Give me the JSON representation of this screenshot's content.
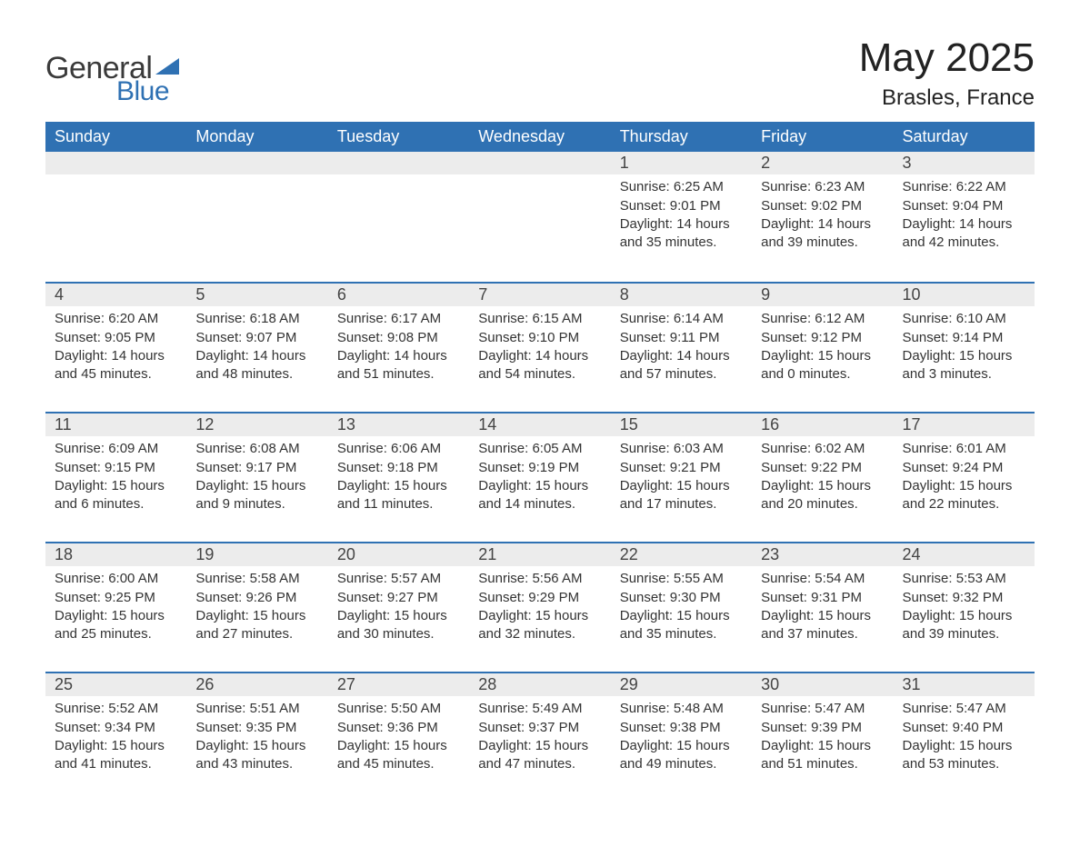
{
  "logo": {
    "word1": "General",
    "word2": "Blue",
    "text_color": "#3a3a3a",
    "accent_color": "#2f71b3"
  },
  "title": "May 2025",
  "location": "Brasles, France",
  "colors": {
    "header_bg": "#2f71b3",
    "header_text": "#ffffff",
    "daynum_bg": "#ececec",
    "row_border": "#2f71b3",
    "body_text": "#333333",
    "page_bg": "#ffffff"
  },
  "typography": {
    "title_fontsize": 44,
    "location_fontsize": 24,
    "header_fontsize": 18,
    "daynum_fontsize": 18,
    "body_fontsize": 15
  },
  "calendar": {
    "type": "table",
    "columns": [
      "Sunday",
      "Monday",
      "Tuesday",
      "Wednesday",
      "Thursday",
      "Friday",
      "Saturday"
    ],
    "weeks": [
      [
        null,
        null,
        null,
        null,
        {
          "num": "1",
          "sunrise": "6:25 AM",
          "sunset": "9:01 PM",
          "daylight": "14 hours and 35 minutes."
        },
        {
          "num": "2",
          "sunrise": "6:23 AM",
          "sunset": "9:02 PM",
          "daylight": "14 hours and 39 minutes."
        },
        {
          "num": "3",
          "sunrise": "6:22 AM",
          "sunset": "9:04 PM",
          "daylight": "14 hours and 42 minutes."
        }
      ],
      [
        {
          "num": "4",
          "sunrise": "6:20 AM",
          "sunset": "9:05 PM",
          "daylight": "14 hours and 45 minutes."
        },
        {
          "num": "5",
          "sunrise": "6:18 AM",
          "sunset": "9:07 PM",
          "daylight": "14 hours and 48 minutes."
        },
        {
          "num": "6",
          "sunrise": "6:17 AM",
          "sunset": "9:08 PM",
          "daylight": "14 hours and 51 minutes."
        },
        {
          "num": "7",
          "sunrise": "6:15 AM",
          "sunset": "9:10 PM",
          "daylight": "14 hours and 54 minutes."
        },
        {
          "num": "8",
          "sunrise": "6:14 AM",
          "sunset": "9:11 PM",
          "daylight": "14 hours and 57 minutes."
        },
        {
          "num": "9",
          "sunrise": "6:12 AM",
          "sunset": "9:12 PM",
          "daylight": "15 hours and 0 minutes."
        },
        {
          "num": "10",
          "sunrise": "6:10 AM",
          "sunset": "9:14 PM",
          "daylight": "15 hours and 3 minutes."
        }
      ],
      [
        {
          "num": "11",
          "sunrise": "6:09 AM",
          "sunset": "9:15 PM",
          "daylight": "15 hours and 6 minutes."
        },
        {
          "num": "12",
          "sunrise": "6:08 AM",
          "sunset": "9:17 PM",
          "daylight": "15 hours and 9 minutes."
        },
        {
          "num": "13",
          "sunrise": "6:06 AM",
          "sunset": "9:18 PM",
          "daylight": "15 hours and 11 minutes."
        },
        {
          "num": "14",
          "sunrise": "6:05 AM",
          "sunset": "9:19 PM",
          "daylight": "15 hours and 14 minutes."
        },
        {
          "num": "15",
          "sunrise": "6:03 AM",
          "sunset": "9:21 PM",
          "daylight": "15 hours and 17 minutes."
        },
        {
          "num": "16",
          "sunrise": "6:02 AM",
          "sunset": "9:22 PM",
          "daylight": "15 hours and 20 minutes."
        },
        {
          "num": "17",
          "sunrise": "6:01 AM",
          "sunset": "9:24 PM",
          "daylight": "15 hours and 22 minutes."
        }
      ],
      [
        {
          "num": "18",
          "sunrise": "6:00 AM",
          "sunset": "9:25 PM",
          "daylight": "15 hours and 25 minutes."
        },
        {
          "num": "19",
          "sunrise": "5:58 AM",
          "sunset": "9:26 PM",
          "daylight": "15 hours and 27 minutes."
        },
        {
          "num": "20",
          "sunrise": "5:57 AM",
          "sunset": "9:27 PM",
          "daylight": "15 hours and 30 minutes."
        },
        {
          "num": "21",
          "sunrise": "5:56 AM",
          "sunset": "9:29 PM",
          "daylight": "15 hours and 32 minutes."
        },
        {
          "num": "22",
          "sunrise": "5:55 AM",
          "sunset": "9:30 PM",
          "daylight": "15 hours and 35 minutes."
        },
        {
          "num": "23",
          "sunrise": "5:54 AM",
          "sunset": "9:31 PM",
          "daylight": "15 hours and 37 minutes."
        },
        {
          "num": "24",
          "sunrise": "5:53 AM",
          "sunset": "9:32 PM",
          "daylight": "15 hours and 39 minutes."
        }
      ],
      [
        {
          "num": "25",
          "sunrise": "5:52 AM",
          "sunset": "9:34 PM",
          "daylight": "15 hours and 41 minutes."
        },
        {
          "num": "26",
          "sunrise": "5:51 AM",
          "sunset": "9:35 PM",
          "daylight": "15 hours and 43 minutes."
        },
        {
          "num": "27",
          "sunrise": "5:50 AM",
          "sunset": "9:36 PM",
          "daylight": "15 hours and 45 minutes."
        },
        {
          "num": "28",
          "sunrise": "5:49 AM",
          "sunset": "9:37 PM",
          "daylight": "15 hours and 47 minutes."
        },
        {
          "num": "29",
          "sunrise": "5:48 AM",
          "sunset": "9:38 PM",
          "daylight": "15 hours and 49 minutes."
        },
        {
          "num": "30",
          "sunrise": "5:47 AM",
          "sunset": "9:39 PM",
          "daylight": "15 hours and 51 minutes."
        },
        {
          "num": "31",
          "sunrise": "5:47 AM",
          "sunset": "9:40 PM",
          "daylight": "15 hours and 53 minutes."
        }
      ]
    ],
    "labels": {
      "sunrise": "Sunrise:",
      "sunset": "Sunset:",
      "daylight": "Daylight:"
    }
  }
}
